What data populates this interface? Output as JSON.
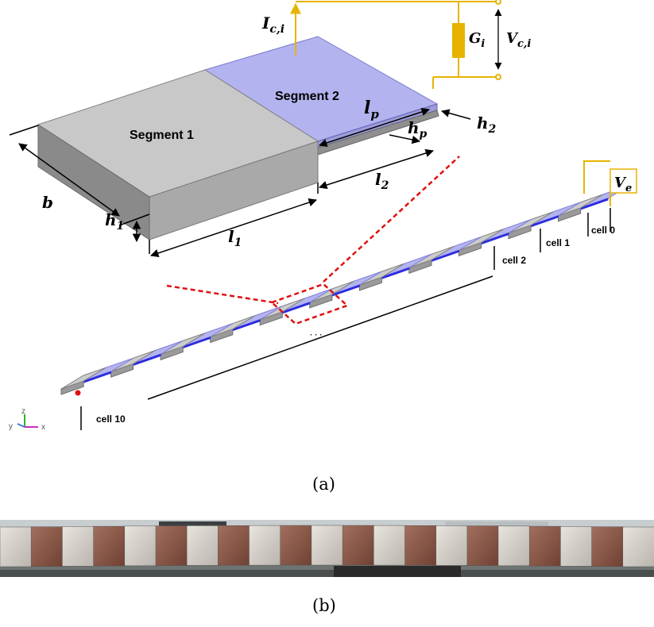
{
  "figure_a": {
    "caption": "(a)",
    "segment1_label": "Segment 1",
    "segment2_label": "Segment 2",
    "dim_b": "b",
    "dim_h1": "h",
    "dim_h1_sub": "1",
    "dim_l1": "l",
    "dim_l1_sub": "1",
    "dim_l2": "l",
    "dim_l2_sub": "2",
    "dim_lp": "l",
    "dim_lp_sub": "p",
    "dim_hp": "h",
    "dim_hp_sub": "p",
    "dim_h2": "h",
    "dim_h2_sub": "2",
    "circuit_current": "I",
    "circuit_current_sub": "c,i",
    "circuit_conductance": "G",
    "circuit_conductance_sub": "i",
    "circuit_voltage": "V",
    "circuit_voltage_sub": "c,i",
    "excitation_voltage": "V",
    "excitation_voltage_sub": "e",
    "cell_labels": {
      "cell0": "cell 0",
      "cell1": "cell 1",
      "cell2": "cell 2",
      "cell10": "cell 10"
    },
    "ellipsis": "· · ·",
    "axes": {
      "x": "x",
      "y": "y",
      "z": "z"
    }
  },
  "figure_b": {
    "caption": "(b)",
    "photo_alt": "photograph of fabricated beam with 10 cells"
  },
  "colors": {
    "segment1_top": "#c8c8c8",
    "segment1_front": "#a9a9a9",
    "segment1_side": "#8a8a8a",
    "segment2_piezo": "#b3b3ef",
    "circuit": "#e6b400",
    "guide_line": "#e01010",
    "strip_edge": "#2d2de0"
  }
}
